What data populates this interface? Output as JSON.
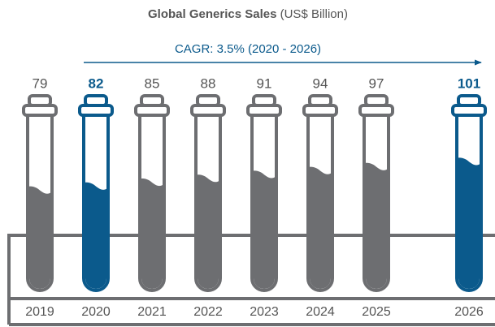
{
  "chart_data": {
    "type": "tube",
    "title": "Global Generics Sales",
    "unit": "(US$ Billion)",
    "annotation": "CAGR: 3.5% (2020 - 2026)",
    "categories": [
      "2019",
      "2020",
      "2021",
      "2022",
      "2023",
      "2024",
      "2025",
      "2026"
    ],
    "values": [
      79,
      82,
      85,
      88,
      91,
      94,
      97,
      101
    ],
    "color": "#6d6e71",
    "colors": [
      "#6d6e71",
      "#0b5a8c",
      "#6d6e71",
      "#6d6e71",
      "#6d6e71",
      "#6d6e71",
      "#6d6e71",
      "#0b5a8c"
    ]
  }
}
